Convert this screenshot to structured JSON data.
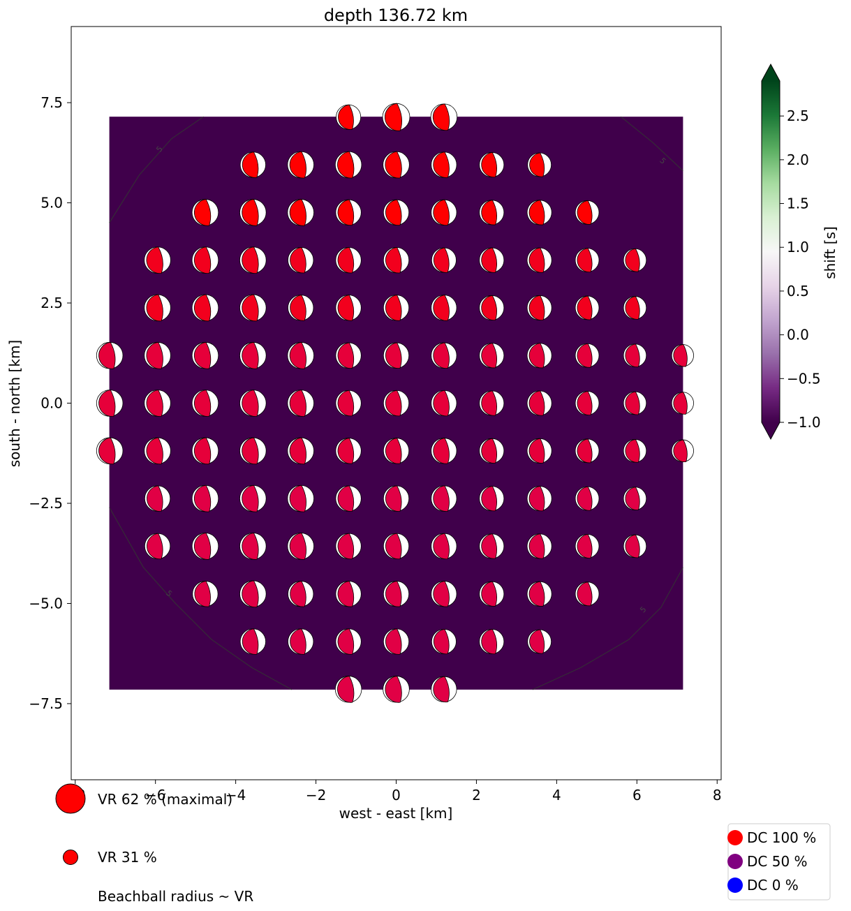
{
  "chart_data": {
    "type": "scatter",
    "title": "depth 136.72 km",
    "xlabel": "west - east [km]",
    "ylabel": "south - north [km]",
    "xlim": [
      -8.1,
      8.1
    ],
    "ylim": [
      -9.4,
      9.4
    ],
    "xticks": [
      -8,
      -6,
      -4,
      -2,
      0,
      2,
      4,
      6,
      8
    ],
    "yticks": [
      -7.5,
      -5.0,
      -2.5,
      0.0,
      2.5,
      5.0,
      7.5
    ],
    "xtick_labels": [
      "−8",
      "−6",
      "−4",
      "−2",
      "0",
      "2",
      "4",
      "6",
      "8"
    ],
    "ytick_labels": [
      "−7.5",
      "−5.0",
      "−2.5",
      "0.0",
      "2.5",
      "5.0",
      "7.5"
    ],
    "background_field": {
      "extent": [
        -7.15,
        7.15,
        -7.15,
        7.15
      ],
      "shift_value": -1.0,
      "color": "#40004b"
    },
    "contour": {
      "level": 5,
      "label": "5",
      "color": "#333333"
    },
    "grid_spacing": 1.19,
    "rows": [
      {
        "y": 7.14,
        "x": [
          -1.19,
          0,
          1.19
        ],
        "vr": [
          28,
          31,
          30
        ],
        "dc": 100
      },
      {
        "y": 5.95,
        "x": [
          -3.57,
          -2.38,
          -1.19,
          0,
          1.19,
          2.38,
          3.57
        ],
        "vr": [
          29,
          30,
          30,
          30,
          29,
          28,
          27
        ],
        "dc": 100
      },
      {
        "y": 4.76,
        "x": [
          -4.76,
          -3.57,
          -2.38,
          -1.19,
          0,
          1.19,
          2.38,
          3.57,
          4.76
        ],
        "vr": [
          30,
          30,
          30,
          29,
          29,
          29,
          28,
          28,
          27
        ],
        "dc": 100
      },
      {
        "y": 3.57,
        "x": [
          -5.95,
          -4.76,
          -3.57,
          -2.38,
          -1.19,
          0,
          1.19,
          2.38,
          3.57,
          4.76,
          5.95
        ],
        "vr": [
          30,
          30,
          30,
          29,
          29,
          29,
          28,
          28,
          28,
          27,
          26
        ],
        "dc": 95
      },
      {
        "y": 2.38,
        "x": [
          -5.95,
          -4.76,
          -3.57,
          -2.38,
          -1.19,
          0,
          1.19,
          2.38,
          3.57,
          4.76,
          5.95
        ],
        "vr": [
          30,
          30,
          30,
          29,
          29,
          29,
          29,
          28,
          28,
          27,
          26
        ],
        "dc": 95
      },
      {
        "y": 1.19,
        "x": [
          -7.14,
          -5.95,
          -4.76,
          -3.57,
          -2.38,
          -1.19,
          0,
          1.19,
          2.38,
          3.57,
          4.76,
          5.95,
          7.14
        ],
        "vr": [
          30,
          30,
          30,
          30,
          30,
          29,
          29,
          29,
          28,
          28,
          27,
          26,
          25
        ],
        "dc": 90
      },
      {
        "y": 0.0,
        "x": [
          -7.14,
          -5.95,
          -4.76,
          -3.57,
          -2.38,
          -1.19,
          0,
          1.19,
          2.38,
          3.57,
          4.76,
          5.95,
          7.14
        ],
        "vr": [
          30,
          30,
          30,
          30,
          30,
          29,
          29,
          29,
          28,
          28,
          27,
          26,
          25
        ],
        "dc": 90
      },
      {
        "y": -1.19,
        "x": [
          -7.14,
          -5.95,
          -4.76,
          -3.57,
          -2.38,
          -1.19,
          0,
          1.19,
          2.38,
          3.57,
          4.76,
          5.95,
          7.14
        ],
        "vr": [
          30,
          30,
          30,
          30,
          30,
          29,
          29,
          29,
          28,
          28,
          27,
          26,
          25
        ],
        "dc": 90
      },
      {
        "y": -2.38,
        "x": [
          -5.95,
          -4.76,
          -3.57,
          -2.38,
          -1.19,
          0,
          1.19,
          2.38,
          3.57,
          4.76,
          5.95
        ],
        "vr": [
          29,
          30,
          30,
          30,
          29,
          29,
          29,
          28,
          28,
          27,
          26
        ],
        "dc": 88
      },
      {
        "y": -3.57,
        "x": [
          -5.95,
          -4.76,
          -3.57,
          -2.38,
          -1.19,
          0,
          1.19,
          2.38,
          3.57,
          4.76,
          5.95
        ],
        "vr": [
          29,
          30,
          30,
          30,
          29,
          29,
          29,
          28,
          28,
          27,
          26
        ],
        "dc": 88
      },
      {
        "y": -4.76,
        "x": [
          -4.76,
          -3.57,
          -2.38,
          -1.19,
          0,
          1.19,
          2.38,
          3.57,
          4.76
        ],
        "vr": [
          29,
          30,
          29,
          29,
          29,
          29,
          28,
          28,
          27
        ],
        "dc": 88
      },
      {
        "y": -5.95,
        "x": [
          -3.57,
          -2.38,
          -1.19,
          0,
          1.19,
          2.38,
          3.57
        ],
        "vr": [
          29,
          29,
          29,
          29,
          28,
          28,
          27
        ],
        "dc": 88
      },
      {
        "y": -7.14,
        "x": [
          -1.19,
          0,
          1.19
        ],
        "vr": [
          30,
          30,
          29
        ],
        "dc": 88
      }
    ],
    "colorbar": {
      "label": "shift [s]",
      "range": [
        -1.0,
        2.9
      ],
      "ticks": [
        -1.0,
        -0.5,
        0.0,
        0.5,
        1.0,
        1.5,
        2.0,
        2.5
      ],
      "tick_labels": [
        "−1.0",
        "−0.5",
        "0.0",
        "0.5",
        "1.0",
        "1.5",
        "2.0",
        "2.5"
      ],
      "extend": "both",
      "colormap": "PRGn",
      "stops": [
        "#40004b",
        "#762a83",
        "#9970ab",
        "#c2a5cf",
        "#e7d4e8",
        "#f7f7f7",
        "#d9f0d3",
        "#a6dba0",
        "#5aae61",
        "#1b7837",
        "#00441b"
      ]
    },
    "size_legend": [
      {
        "label": "VR 62 % (maximal)",
        "vr": 62
      },
      {
        "label": "VR 31 %",
        "vr": 31
      }
    ],
    "size_note": "Beachball radius ~ VR",
    "dc_legend": [
      {
        "label": "DC 100 %",
        "color": "#ff0000"
      },
      {
        "label": "DC 50 %",
        "color": "#800080"
      },
      {
        "label": "DC 0 %",
        "color": "#0000ff"
      }
    ]
  }
}
